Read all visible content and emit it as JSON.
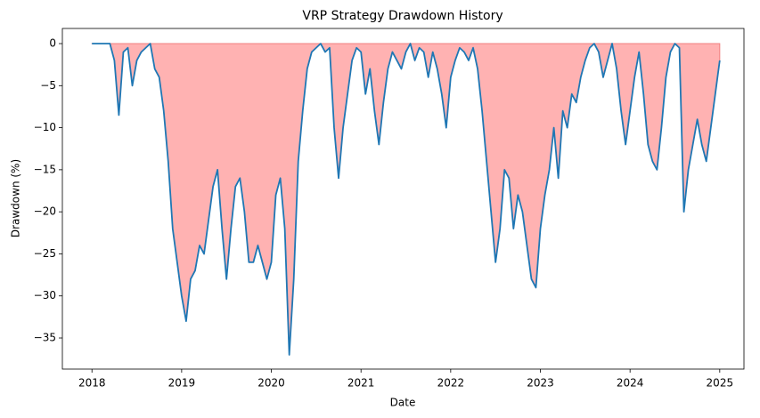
{
  "chart_data": {
    "type": "area",
    "title": "VRP Strategy Drawdown History",
    "x_label": "Date",
    "y_label": "Drawdown (%)",
    "color": "#1f77b4",
    "fill_color": "#ffb2b2",
    "zero_line_color": "#f08080",
    "xlim": [
      2017.67,
      2025.27
    ],
    "ylim": [
      -38.7,
      1.8
    ],
    "xticks": [
      2018,
      2019,
      2020,
      2021,
      2022,
      2023,
      2024,
      2025
    ],
    "yticks": [
      0,
      {
        "value": -5,
        "label": "−5"
      },
      {
        "value": -10,
        "label": "−10"
      },
      {
        "value": -15,
        "label": "−15"
      },
      {
        "value": -20,
        "label": "−20"
      },
      {
        "value": -25,
        "label": "−25"
      },
      {
        "value": -30,
        "label": "−30"
      },
      {
        "value": -35,
        "label": "−35"
      }
    ],
    "x": [
      2018.0,
      2018.05,
      2018.1,
      2018.15,
      2018.2,
      2018.25,
      2018.3,
      2018.35,
      2018.4,
      2018.45,
      2018.5,
      2018.55,
      2018.6,
      2018.65,
      2018.7,
      2018.75,
      2018.8,
      2018.85,
      2018.9,
      2018.95,
      2019.0,
      2019.05,
      2019.1,
      2019.15,
      2019.2,
      2019.25,
      2019.3,
      2019.35,
      2019.4,
      2019.45,
      2019.5,
      2019.55,
      2019.6,
      2019.65,
      2019.7,
      2019.75,
      2019.8,
      2019.85,
      2019.9,
      2019.95,
      2020.0,
      2020.05,
      2020.1,
      2020.15,
      2020.2,
      2020.25,
      2020.3,
      2020.35,
      2020.4,
      2020.45,
      2020.5,
      2020.55,
      2020.6,
      2020.65,
      2020.7,
      2020.75,
      2020.8,
      2020.85,
      2020.9,
      2020.95,
      2021.0,
      2021.05,
      2021.1,
      2021.15,
      2021.2,
      2021.25,
      2021.3,
      2021.35,
      2021.4,
      2021.45,
      2021.5,
      2021.55,
      2021.6,
      2021.65,
      2021.7,
      2021.75,
      2021.8,
      2021.85,
      2021.9,
      2021.95,
      2022.0,
      2022.05,
      2022.1,
      2022.15,
      2022.2,
      2022.25,
      2022.3,
      2022.35,
      2022.4,
      2022.45,
      2022.5,
      2022.55,
      2022.6,
      2022.65,
      2022.7,
      2022.75,
      2022.8,
      2022.85,
      2022.9,
      2022.95,
      2023.0,
      2023.05,
      2023.1,
      2023.15,
      2023.2,
      2023.25,
      2023.3,
      2023.35,
      2023.4,
      2023.45,
      2023.5,
      2023.55,
      2023.6,
      2023.65,
      2023.7,
      2023.75,
      2023.8,
      2023.85,
      2023.9,
      2023.95,
      2024.0,
      2024.05,
      2024.1,
      2024.15,
      2024.2,
      2024.25,
      2024.3,
      2024.35,
      2024.4,
      2024.45,
      2024.5,
      2024.55,
      2024.6,
      2024.65,
      2024.7,
      2024.75,
      2024.8,
      2024.85,
      2024.9,
      2024.95,
      2025.0
    ],
    "values": [
      0,
      0,
      0,
      0,
      0,
      -2,
      -8.5,
      -1,
      -0.5,
      -5,
      -2,
      -1,
      -0.5,
      0,
      -3,
      -4,
      -8,
      -14,
      -22,
      -26,
      -30,
      -33,
      -28,
      -27,
      -24,
      -25,
      -21,
      -17,
      -15,
      -22,
      -28,
      -22,
      -17,
      -16,
      -20,
      -26,
      -26,
      -24,
      -26,
      -28,
      -26,
      -18,
      -16,
      -22,
      -37,
      -28,
      -14,
      -8,
      -3,
      -1,
      -0.5,
      0,
      -1,
      -0.5,
      -10,
      -16,
      -10,
      -6,
      -2,
      -0.5,
      -1,
      -6,
      -3,
      -8,
      -12,
      -7,
      -3,
      -1,
      -2,
      -3,
      -1,
      0,
      -2,
      -0.5,
      -1,
      -4,
      -1,
      -3,
      -6,
      -10,
      -4,
      -2,
      -0.5,
      -1,
      -2,
      -0.5,
      -3,
      -8,
      -14,
      -20,
      -26,
      -22,
      -15,
      -16,
      -22,
      -18,
      -20,
      -24,
      -28,
      -29,
      -22,
      -18,
      -15,
      -10,
      -16,
      -8,
      -10,
      -6,
      -7,
      -4,
      -2,
      -0.5,
      0,
      -1,
      -4,
      -2,
      0,
      -3,
      -8,
      -12,
      -8,
      -4,
      -1,
      -6,
      -12,
      -14,
      -15,
      -10,
      -4,
      -1,
      0,
      -0.5,
      -20,
      -15,
      -12,
      -9,
      -12,
      -14,
      -10,
      -6,
      -2
    ]
  }
}
